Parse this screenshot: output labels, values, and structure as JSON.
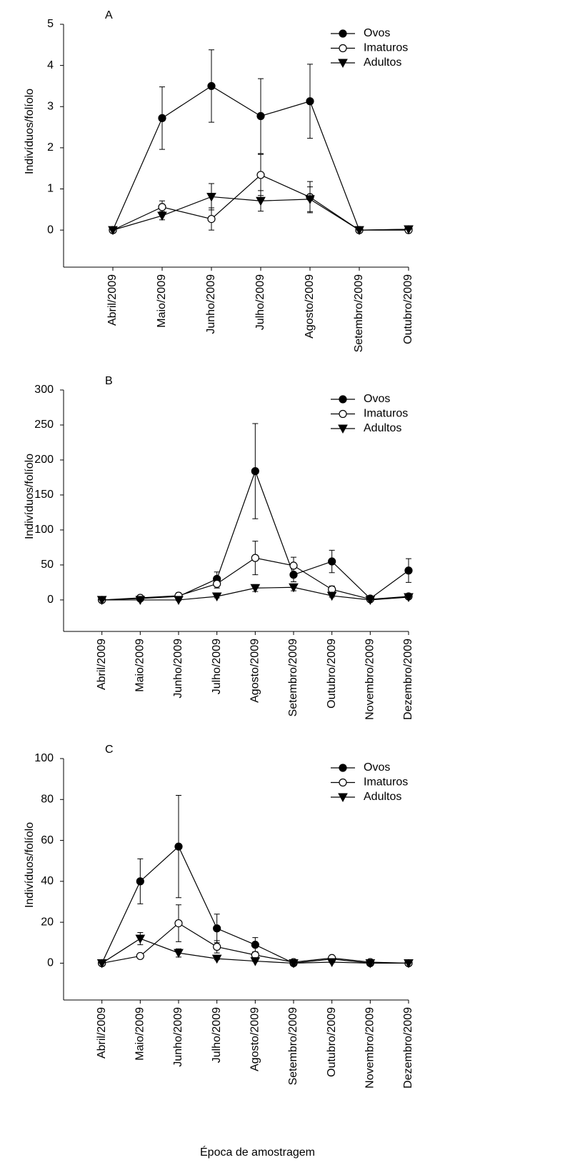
{
  "charts": [
    {
      "type": "line",
      "title": "A",
      "ylabel": "Indivíduos/folíolo",
      "categories": [
        "Abril/2009",
        "Maio/2009",
        "Junho/2009",
        "Julho/2009",
        "Agosto/2009",
        "Setembro/2009",
        "Outubro/2009"
      ],
      "series": [
        {
          "name": "Ovos",
          "color": "#000000",
          "marker": "filled-circle",
          "values": [
            0,
            2.72,
            3.5,
            2.77,
            3.13,
            0,
            0.02
          ],
          "errors": [
            0,
            0.76,
            0.88,
            0.91,
            0.9,
            0,
            0
          ]
        },
        {
          "name": "Imaturos",
          "color": "#000000",
          "marker": "open-circle",
          "values": [
            0,
            0.56,
            0.27,
            1.34,
            0.8,
            0,
            0
          ],
          "errors": [
            0,
            0.15,
            0.27,
            0.5,
            0.38,
            0,
            0
          ]
        },
        {
          "name": "Adultos",
          "color": "#000000",
          "marker": "down-triangle",
          "values": [
            0,
            0.35,
            0.81,
            0.71,
            0.75,
            0,
            0.02
          ],
          "errors": [
            0,
            0.1,
            0.32,
            0.25,
            0.3,
            0,
            0
          ]
        }
      ],
      "ylim": [
        -0.9,
        5
      ],
      "yticks": [
        0,
        1,
        2,
        3,
        4,
        5
      ],
      "legend": "upper right"
    },
    {
      "type": "line",
      "title": "B",
      "ylabel": "Indivíduos/folíolo",
      "categories": [
        "Abril/2009",
        "Maio/2009",
        "Junho/2009",
        "Julho/2009",
        "Agosto/2009",
        "Setembro/2009",
        "Outubro/2009",
        "Novembro/2009",
        "Dezembro/2009"
      ],
      "series": [
        {
          "name": "Ovos",
          "color": "#000000",
          "marker": "filled-circle",
          "values": [
            0,
            2,
            5,
            30,
            184,
            36,
            55,
            2,
            42
          ],
          "errors": [
            0,
            1,
            5,
            10,
            68,
            10,
            16,
            1,
            17
          ]
        },
        {
          "name": "Imaturos",
          "color": "#000000",
          "marker": "open-circle",
          "values": [
            0,
            3,
            6,
            23,
            60,
            49,
            15,
            1,
            5
          ],
          "errors": [
            0,
            1,
            3,
            6,
            24,
            12,
            5,
            1,
            2
          ]
        },
        {
          "name": "Adultos",
          "color": "#000000",
          "marker": "down-triangle",
          "values": [
            0,
            0,
            0,
            5,
            17,
            18,
            6,
            0,
            4
          ],
          "errors": [
            0,
            0,
            1,
            2,
            5,
            5,
            2,
            0,
            1
          ]
        }
      ],
      "ylim": [
        -45,
        300
      ],
      "yticks": [
        0,
        50,
        100,
        150,
        200,
        250,
        300
      ],
      "legend": "upper right"
    },
    {
      "type": "line",
      "title": "C",
      "ylabel": "Indivíduos/folíolo",
      "xlabel": "Época de amostragem",
      "categories": [
        "Abril/2009",
        "Maio/2009",
        "Junho/2009",
        "Julho/2009",
        "Agosto/2009",
        "Setembro/2009",
        "Outubro/2009",
        "Novembro/2009",
        "Dezembro/2009"
      ],
      "series": [
        {
          "name": "Ovos",
          "color": "#000000",
          "marker": "filled-circle",
          "values": [
            0,
            40,
            57,
            17,
            9,
            0,
            2,
            0,
            0
          ],
          "errors": [
            0,
            11,
            25,
            7,
            3.5,
            0,
            1,
            0,
            0
          ]
        },
        {
          "name": "Imaturos",
          "color": "#000000",
          "marker": "open-circle",
          "values": [
            0,
            3.5,
            19.5,
            8,
            4,
            0.5,
            2.5,
            0.5,
            0
          ],
          "errors": [
            0,
            0,
            9,
            3,
            1.5,
            0,
            1,
            0,
            0
          ]
        },
        {
          "name": "Adultos",
          "color": "#000000",
          "marker": "down-triangle",
          "values": [
            0,
            12,
            5,
            2.2,
            1,
            0,
            0.5,
            0,
            0
          ],
          "errors": [
            0,
            3,
            2,
            0.5,
            0.3,
            0,
            0.3,
            0,
            0
          ]
        }
      ],
      "ylim": [
        -18,
        100
      ],
      "yticks": [
        0,
        20,
        40,
        60,
        80,
        100
      ],
      "legend": "upper right"
    }
  ]
}
